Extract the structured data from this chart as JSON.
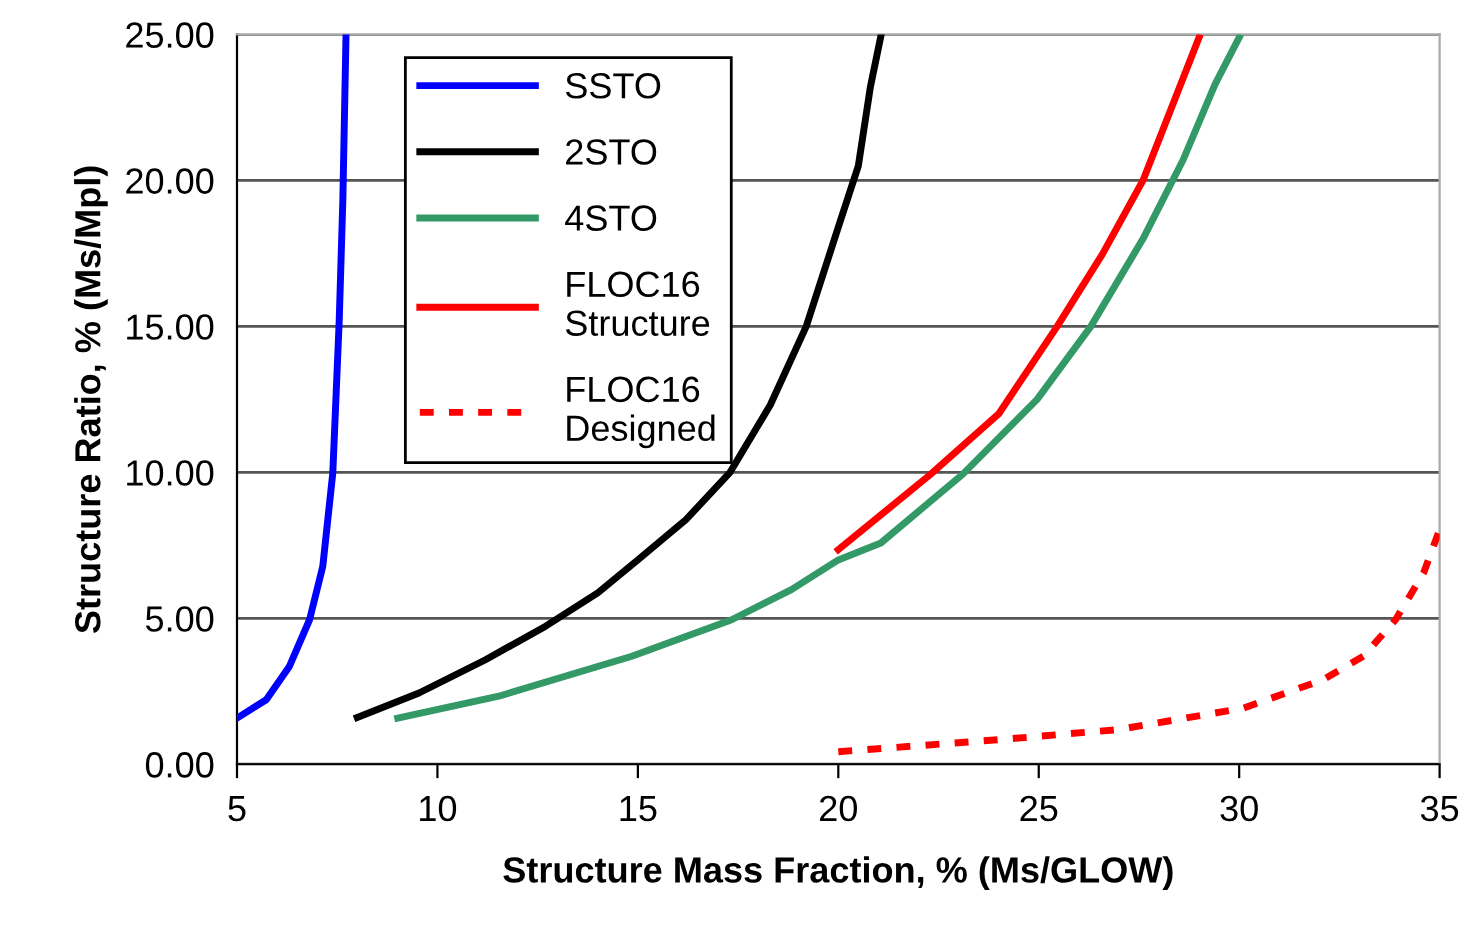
{
  "chart_data": {
    "type": "line",
    "xlabel": "Structure Mass Fraction, % (Ms/GLOW)",
    "ylabel": "Structure Ratio, % (Ms/Mpl)",
    "xlim": [
      5,
      35
    ],
    "xticks": [
      5,
      10,
      15,
      20,
      25,
      30,
      35
    ],
    "ylim": [
      0,
      25
    ],
    "yticks": [
      {
        "value": 0,
        "label": "0.00"
      },
      {
        "value": 5,
        "label": "5.00"
      },
      {
        "value": 10,
        "label": "10.00"
      },
      {
        "value": 15,
        "label": "15.00"
      },
      {
        "value": 20,
        "label": "20.00"
      },
      {
        "value": 25,
        "label": "25.00"
      }
    ],
    "grid": "y",
    "legend": "top left",
    "marker": "none",
    "series": [
      {
        "name": "SSTO",
        "color": "#0000ff",
        "line_style": "solid",
        "x": [
          5,
          5.73,
          6.31,
          6.81,
          7.14,
          7.39,
          7.55,
          7.64,
          7.72
        ],
        "values": [
          1.58,
          2.21,
          3.36,
          4.95,
          6.78,
          9.98,
          15.2,
          19.3,
          25
        ]
      },
      {
        "name": "2STO",
        "color": "#000000",
        "line_style": "solid",
        "x": [
          8,
          9.54,
          11.2,
          12.7,
          14.0,
          15.0,
          16.2,
          17.3,
          18.3,
          19.2,
          20.0,
          20.5,
          20.8,
          21.07
        ],
        "values": [
          1.6,
          2.44,
          3.58,
          4.73,
          5.87,
          7.0,
          8.38,
          10.0,
          12.3,
          15.0,
          18.4,
          20.5,
          23.2,
          25
        ]
      },
      {
        "name": "4STO",
        "color": "#339966",
        "line_style": "solid",
        "x": [
          9.01,
          11.53,
          14.85,
          17.34,
          18.83,
          20.0,
          21.06,
          23.1,
          24.96,
          26.3,
          27.6,
          28.6,
          29.4,
          30.0
        ],
        "values": [
          1.58,
          2.33,
          3.7,
          4.95,
          5.98,
          7.0,
          7.58,
          9.93,
          12.5,
          15.0,
          18.0,
          20.7,
          23.3,
          24.9
        ]
      },
      {
        "name": "FLOC16\nStructure",
        "color": "#ff0000",
        "line_style": "solid",
        "x": [
          20.0,
          22.3,
          24.0,
          25.46,
          26.6,
          27.6,
          28.4,
          29.0
        ],
        "values": [
          7.35,
          9.93,
          12.0,
          15.0,
          17.5,
          20.0,
          22.8,
          24.9
        ]
      },
      {
        "name": "FLOC16\nDesigned",
        "color": "#ff0000",
        "line_style": "dashed",
        "x": [
          20.0,
          24.0,
          27.0,
          30.1,
          32.1,
          33.1,
          33.9,
          34.6,
          35.0
        ],
        "values": [
          0.43,
          0.84,
          1.19,
          1.92,
          2.9,
          3.7,
          4.95,
          6.55,
          8.04
        ]
      }
    ]
  }
}
